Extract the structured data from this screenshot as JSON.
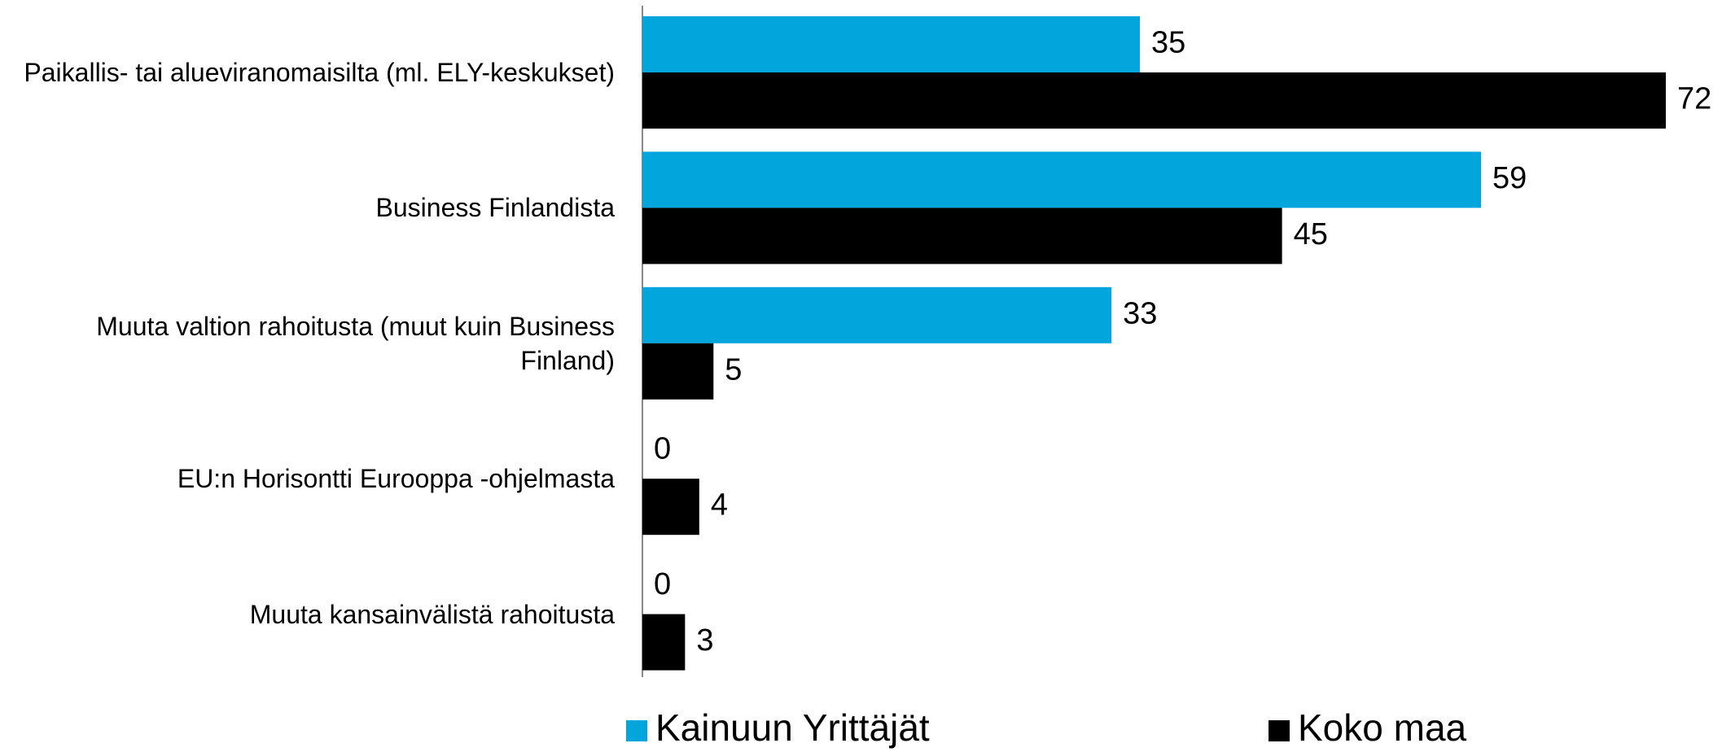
{
  "chart_data": {
    "type": "barh",
    "categories": [
      "Paikallis- tai alueviranomaisilta (ml. ELY-keskukset)",
      "Business Finlandista",
      "Muuta valtion rahoitusta (muut kuin Business Finland)",
      "EU:n Horisontti Eurooppa -ohjelmasta",
      "Muuta kansainvälistä rahoitusta"
    ],
    "series": [
      {
        "name": "Kainuun Yrittäjät",
        "color": "#02a6dc",
        "values": [
          35,
          59,
          33,
          0,
          0
        ]
      },
      {
        "name": "Koko maa",
        "color": "#000000",
        "values": [
          72,
          45,
          5,
          4,
          3
        ]
      }
    ]
  }
}
